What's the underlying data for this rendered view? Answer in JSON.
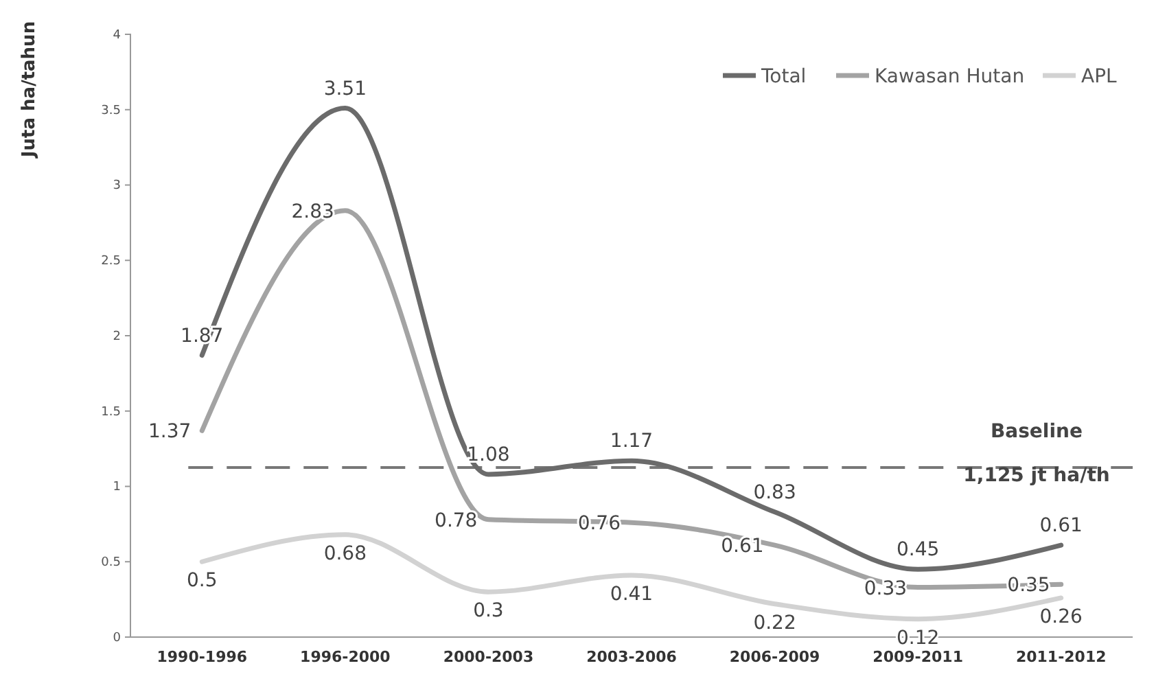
{
  "chart_data": {
    "type": "line",
    "ylabel": "Juta ha/tahun",
    "categories": [
      "1990-1996",
      "1996-2000",
      "2000-2003",
      "2003-2006",
      "2006-2009",
      "2009-2011",
      "2011-2012"
    ],
    "series": [
      {
        "name": "Total",
        "color": "#6b6b6b",
        "values": [
          1.87,
          3.51,
          1.08,
          1.17,
          0.83,
          0.45,
          0.61
        ]
      },
      {
        "name": "Kawasan Hutan",
        "color": "#a3a3a3",
        "values": [
          1.37,
          2.83,
          0.78,
          0.76,
          0.61,
          0.33,
          0.35
        ]
      },
      {
        "name": "APL",
        "color": "#d2d2d2",
        "values": [
          0.5,
          0.68,
          0.3,
          0.41,
          0.22,
          0.12,
          0.26
        ]
      }
    ],
    "ylim": [
      0,
      4
    ],
    "yticks": [
      0,
      0.5,
      1,
      1.5,
      2,
      2.5,
      3,
      3.5,
      4
    ],
    "ref_lines": [
      {
        "axis": "y",
        "value": 1.125,
        "label": "Baseline\n1,125 jt ha/th",
        "color": "#777777",
        "line_style": "dashed"
      }
    ],
    "data_labels": true,
    "legend": "top right",
    "marker": "none",
    "line_style": "solid"
  }
}
